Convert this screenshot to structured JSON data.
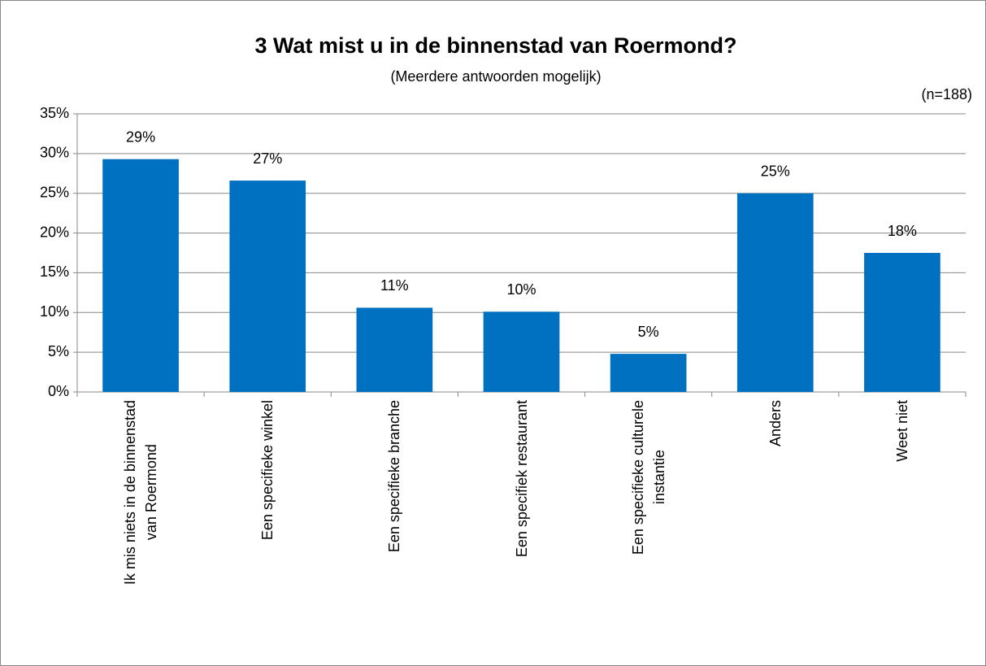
{
  "chart_data": {
    "type": "bar",
    "title": "3 Wat mist u in de binnenstad van Roermond?",
    "subtitle": "(Meerdere antwoorden mogelijk)",
    "annotation": "(n=188)",
    "categories": [
      "Ik mis niets in de binnenstad\nvan Roermond",
      "Een specifieke winkel",
      "Een specifieke branche",
      "Een specifiek restaurant",
      "Een specifieke culturele\ninstantie",
      "Anders",
      "Weet niet"
    ],
    "values": [
      29.3,
      26.6,
      10.6,
      10.1,
      4.8,
      25.0,
      17.5
    ],
    "value_labels": [
      "29%",
      "27%",
      "11%",
      "10%",
      "5%",
      "25%",
      "18%"
    ],
    "color": "#0070c0",
    "ylim": [
      0,
      35
    ],
    "yticks": [
      {
        "value": 0,
        "label": "0%"
      },
      {
        "value": 5,
        "label": "5%"
      },
      {
        "value": 10,
        "label": "10%"
      },
      {
        "value": 15,
        "label": "15%"
      },
      {
        "value": 20,
        "label": "20%"
      },
      {
        "value": 25,
        "label": "25%"
      },
      {
        "value": 30,
        "label": "30%"
      },
      {
        "value": 35,
        "label": "35%"
      }
    ],
    "grid": true
  }
}
